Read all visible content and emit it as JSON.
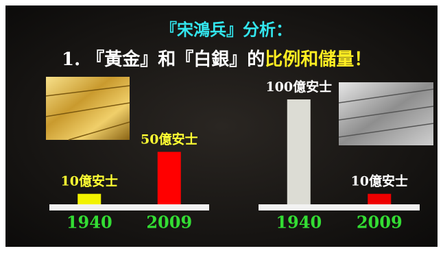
{
  "header": {
    "line1": "『宋鴻兵』分析：",
    "line2a": "1. 『黃金』和『白銀』的",
    "line2b": "比例和儲量！"
  },
  "chart_data": [
    {
      "type": "bar",
      "categories": [
        "1940",
        "2009"
      ],
      "values": [
        10,
        50
      ],
      "value_labels": [
        "10億安士",
        "50億安士"
      ],
      "colors": [
        "#f2f200",
        "#ff0000"
      ],
      "label_color": "#ffff33"
    },
    {
      "type": "bar",
      "categories": [
        "1940",
        "2009"
      ],
      "values": [
        100,
        10
      ],
      "value_labels": [
        "100億安士",
        "10億安士"
      ],
      "colors": [
        "#dcdcd4",
        "#ee0000"
      ],
      "label_color": "#ffffff"
    }
  ]
}
